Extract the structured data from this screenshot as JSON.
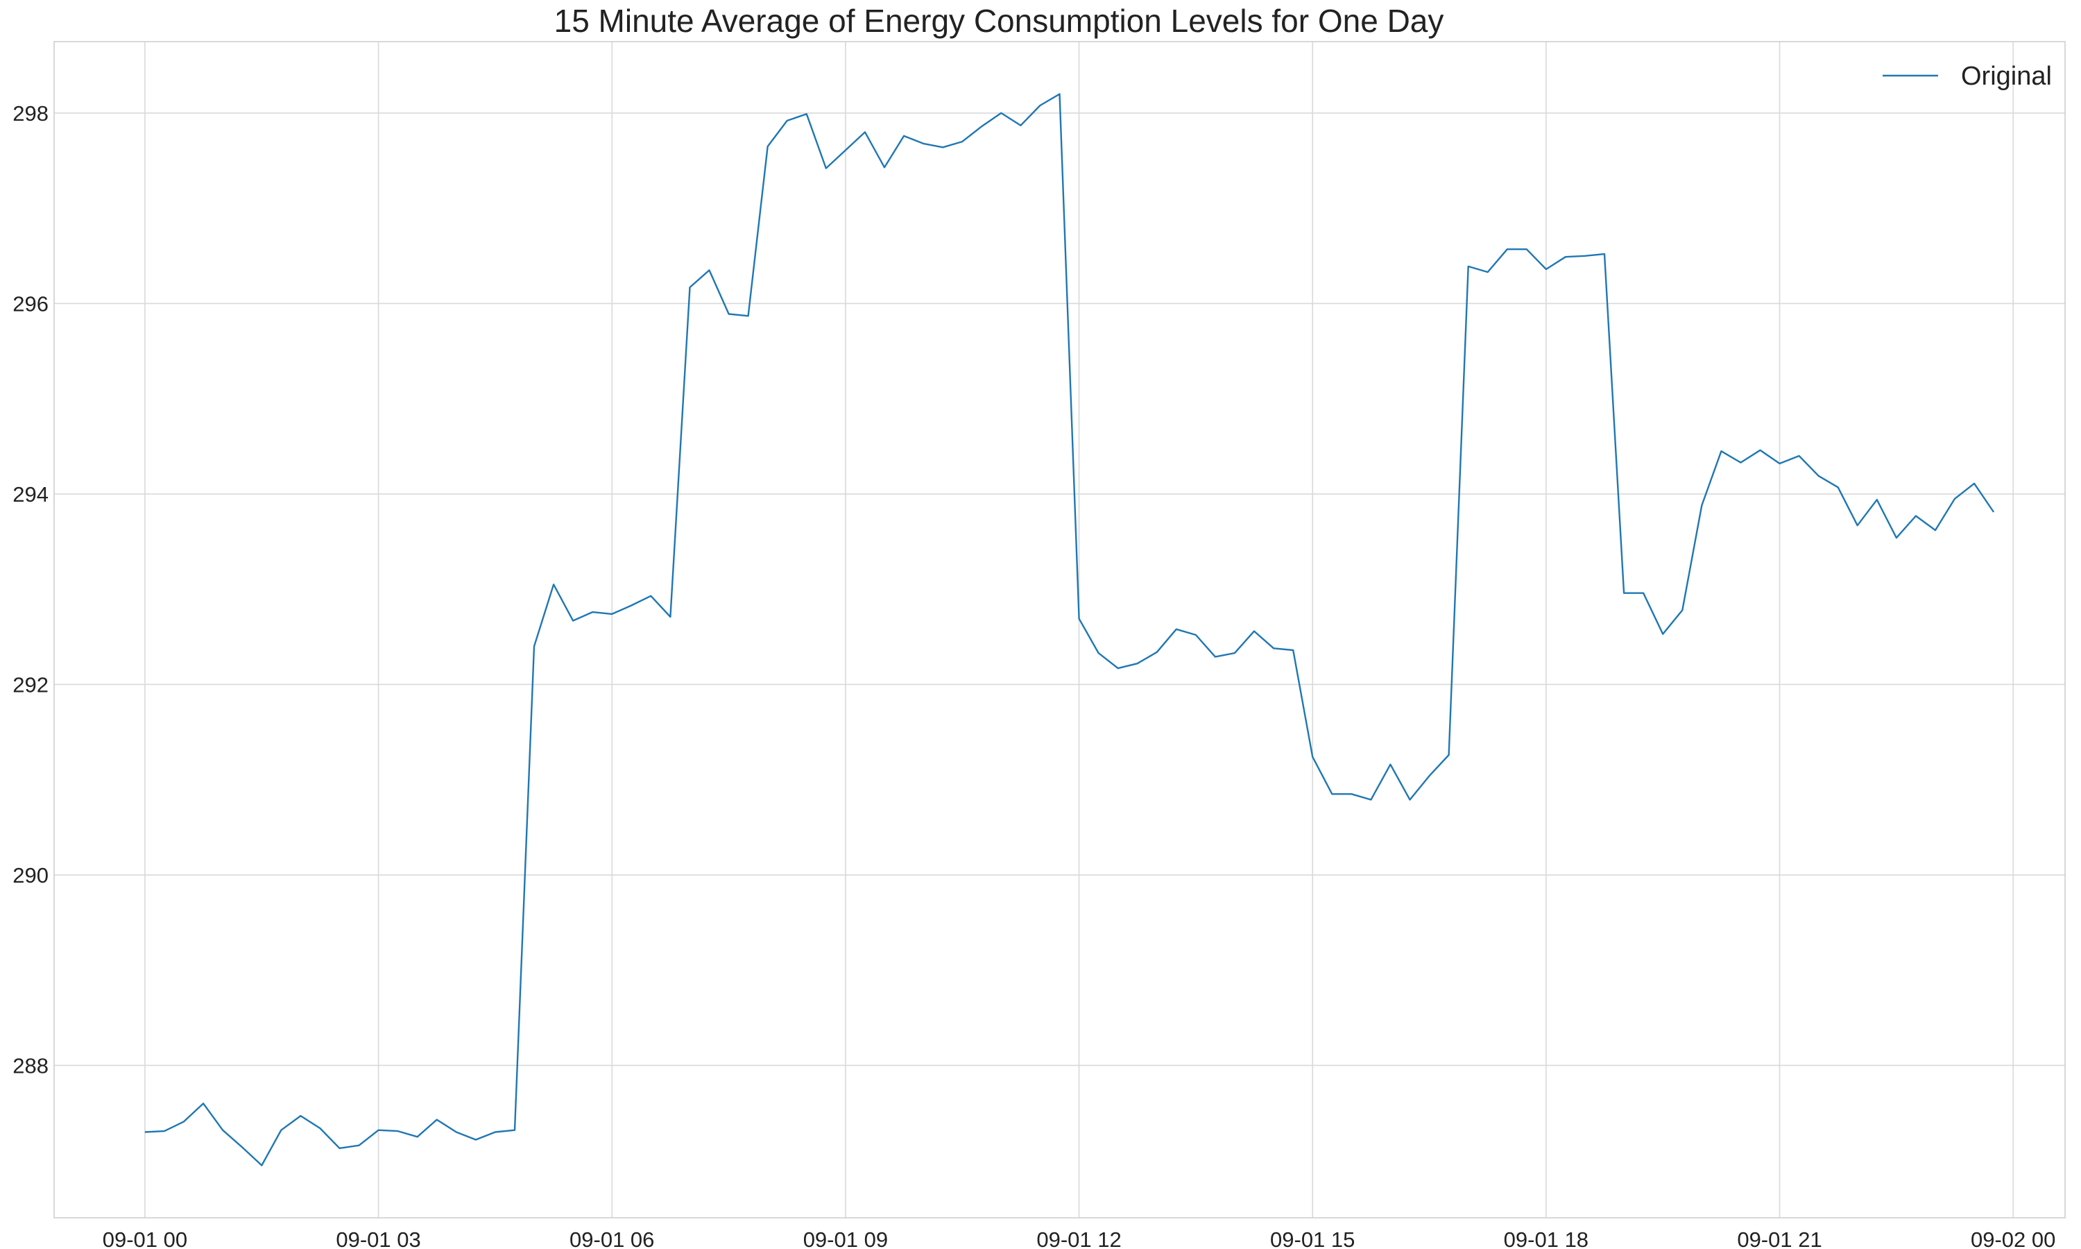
{
  "chart_data": {
    "type": "line",
    "title": "15 Minute Average of Energy Consumption Levels for One Day",
    "xlabel": "",
    "ylabel": "",
    "x_start": "2023-09-01 00:00",
    "x_step_minutes": 15,
    "xlim": [
      "2023-08-31 22:50",
      "2023-09-02 00:40"
    ],
    "ylim": [
      286.4,
      298.75
    ],
    "x_ticks": [
      {
        "value_hours": 0,
        "label": "09-01 00"
      },
      {
        "value_hours": 3,
        "label": "09-01 03"
      },
      {
        "value_hours": 6,
        "label": "09-01 06"
      },
      {
        "value_hours": 9,
        "label": "09-01 09"
      },
      {
        "value_hours": 12,
        "label": "09-01 12"
      },
      {
        "value_hours": 15,
        "label": "09-01 15"
      },
      {
        "value_hours": 18,
        "label": "09-01 18"
      },
      {
        "value_hours": 21,
        "label": "09-01 21"
      },
      {
        "value_hours": 24,
        "label": "09-02 00"
      }
    ],
    "y_ticks": [
      {
        "value": 288,
        "label": "288"
      },
      {
        "value": 290,
        "label": "290"
      },
      {
        "value": 292,
        "label": "292"
      },
      {
        "value": 294,
        "label": "294"
      },
      {
        "value": 296,
        "label": "296"
      },
      {
        "value": 298,
        "label": "298"
      }
    ],
    "grid": true,
    "legend_position": "top-right",
    "series": [
      {
        "name": "Original",
        "color": "#1f77b4",
        "values": [
          287.3,
          287.31,
          287.41,
          287.6,
          287.32,
          287.14,
          286.95,
          287.32,
          287.47,
          287.34,
          287.13,
          287.16,
          287.32,
          287.31,
          287.25,
          287.43,
          287.3,
          287.22,
          287.3,
          287.32,
          292.4,
          293.05,
          292.67,
          292.76,
          292.74,
          292.83,
          292.93,
          292.71,
          296.17,
          296.35,
          295.89,
          295.87,
          297.65,
          297.92,
          297.99,
          297.42,
          297.61,
          297.8,
          297.43,
          297.76,
          297.68,
          297.64,
          297.7,
          297.86,
          298.0,
          297.87,
          298.08,
          298.2,
          292.69,
          292.33,
          292.17,
          292.22,
          292.34,
          292.58,
          292.52,
          292.29,
          292.33,
          292.56,
          292.38,
          292.36,
          291.24,
          290.85,
          290.85,
          290.79,
          291.16,
          290.79,
          291.04,
          291.26,
          296.39,
          296.33,
          296.57,
          296.57,
          296.36,
          296.49,
          296.5,
          296.52,
          292.96,
          292.96,
          292.53,
          292.78,
          293.88,
          294.45,
          294.33,
          294.46,
          294.32,
          294.4,
          294.19,
          294.07,
          293.67,
          293.94,
          293.54,
          293.77,
          293.62,
          293.95,
          294.11,
          293.81
        ]
      }
    ]
  }
}
